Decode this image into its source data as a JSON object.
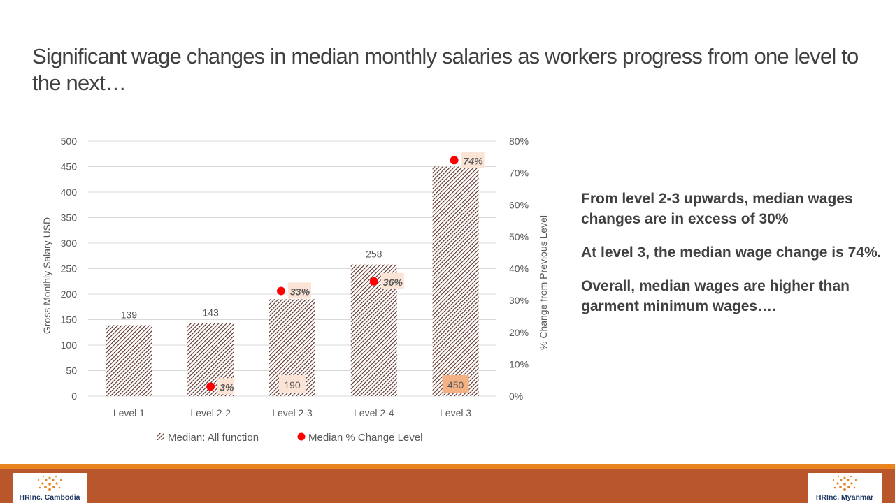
{
  "slide": {
    "title": "Significant wage changes in median monthly salaries as workers progress from one level to the next…"
  },
  "side_notes": [
    "From level 2-3 upwards, median wages changes are in excess of 30%",
    "At level 3, the median wage change is 74%.",
    "Overall, median wages are higher than garment minimum wages…."
  ],
  "colors": {
    "bar_hatch": "#5a2e24",
    "dot": "#ff0000",
    "label_bg_light": "#fbe4d5",
    "label_bg_dark": "#f4b183",
    "gridline": "#d9d9d9",
    "footer_orange": "#e9831d",
    "footer_rust": "#b9562b",
    "logo_text": "#1f3864"
  },
  "chart_data": {
    "type": "bar",
    "categories": [
      "Level 1",
      "Level 2-2",
      "Level 2-3",
      "Level 2-4",
      "Level 3"
    ],
    "series": [
      {
        "name": "Median: All function",
        "type": "bar",
        "axis": "left",
        "values": [
          139,
          143,
          190,
          258,
          450
        ],
        "labels": [
          "139",
          "143",
          "190",
          "258",
          "450"
        ]
      },
      {
        "name": "Median % Change Level",
        "type": "scatter",
        "axis": "right",
        "values": [
          null,
          3,
          33,
          36,
          74
        ],
        "labels": [
          null,
          "3%",
          "33%",
          "36%",
          "74%"
        ]
      }
    ],
    "ylabel": "Gross Monthly Salary USD",
    "y2label": "% Change from Previous Level",
    "ylim": [
      0,
      500
    ],
    "y2lim": [
      0,
      80
    ],
    "yticks": [
      "0",
      "50",
      "100",
      "150",
      "200",
      "250",
      "300",
      "350",
      "400",
      "450",
      "500"
    ],
    "y2ticks": [
      "0%",
      "10%",
      "20%",
      "30%",
      "40%",
      "50%",
      "60%",
      "70%",
      "80%"
    ],
    "grid": true,
    "legend_position": "bottom"
  },
  "logos": {
    "left": {
      "brand": "HRInc. Cambodia"
    },
    "right": {
      "brand": "HRInc. Myanmar"
    }
  }
}
